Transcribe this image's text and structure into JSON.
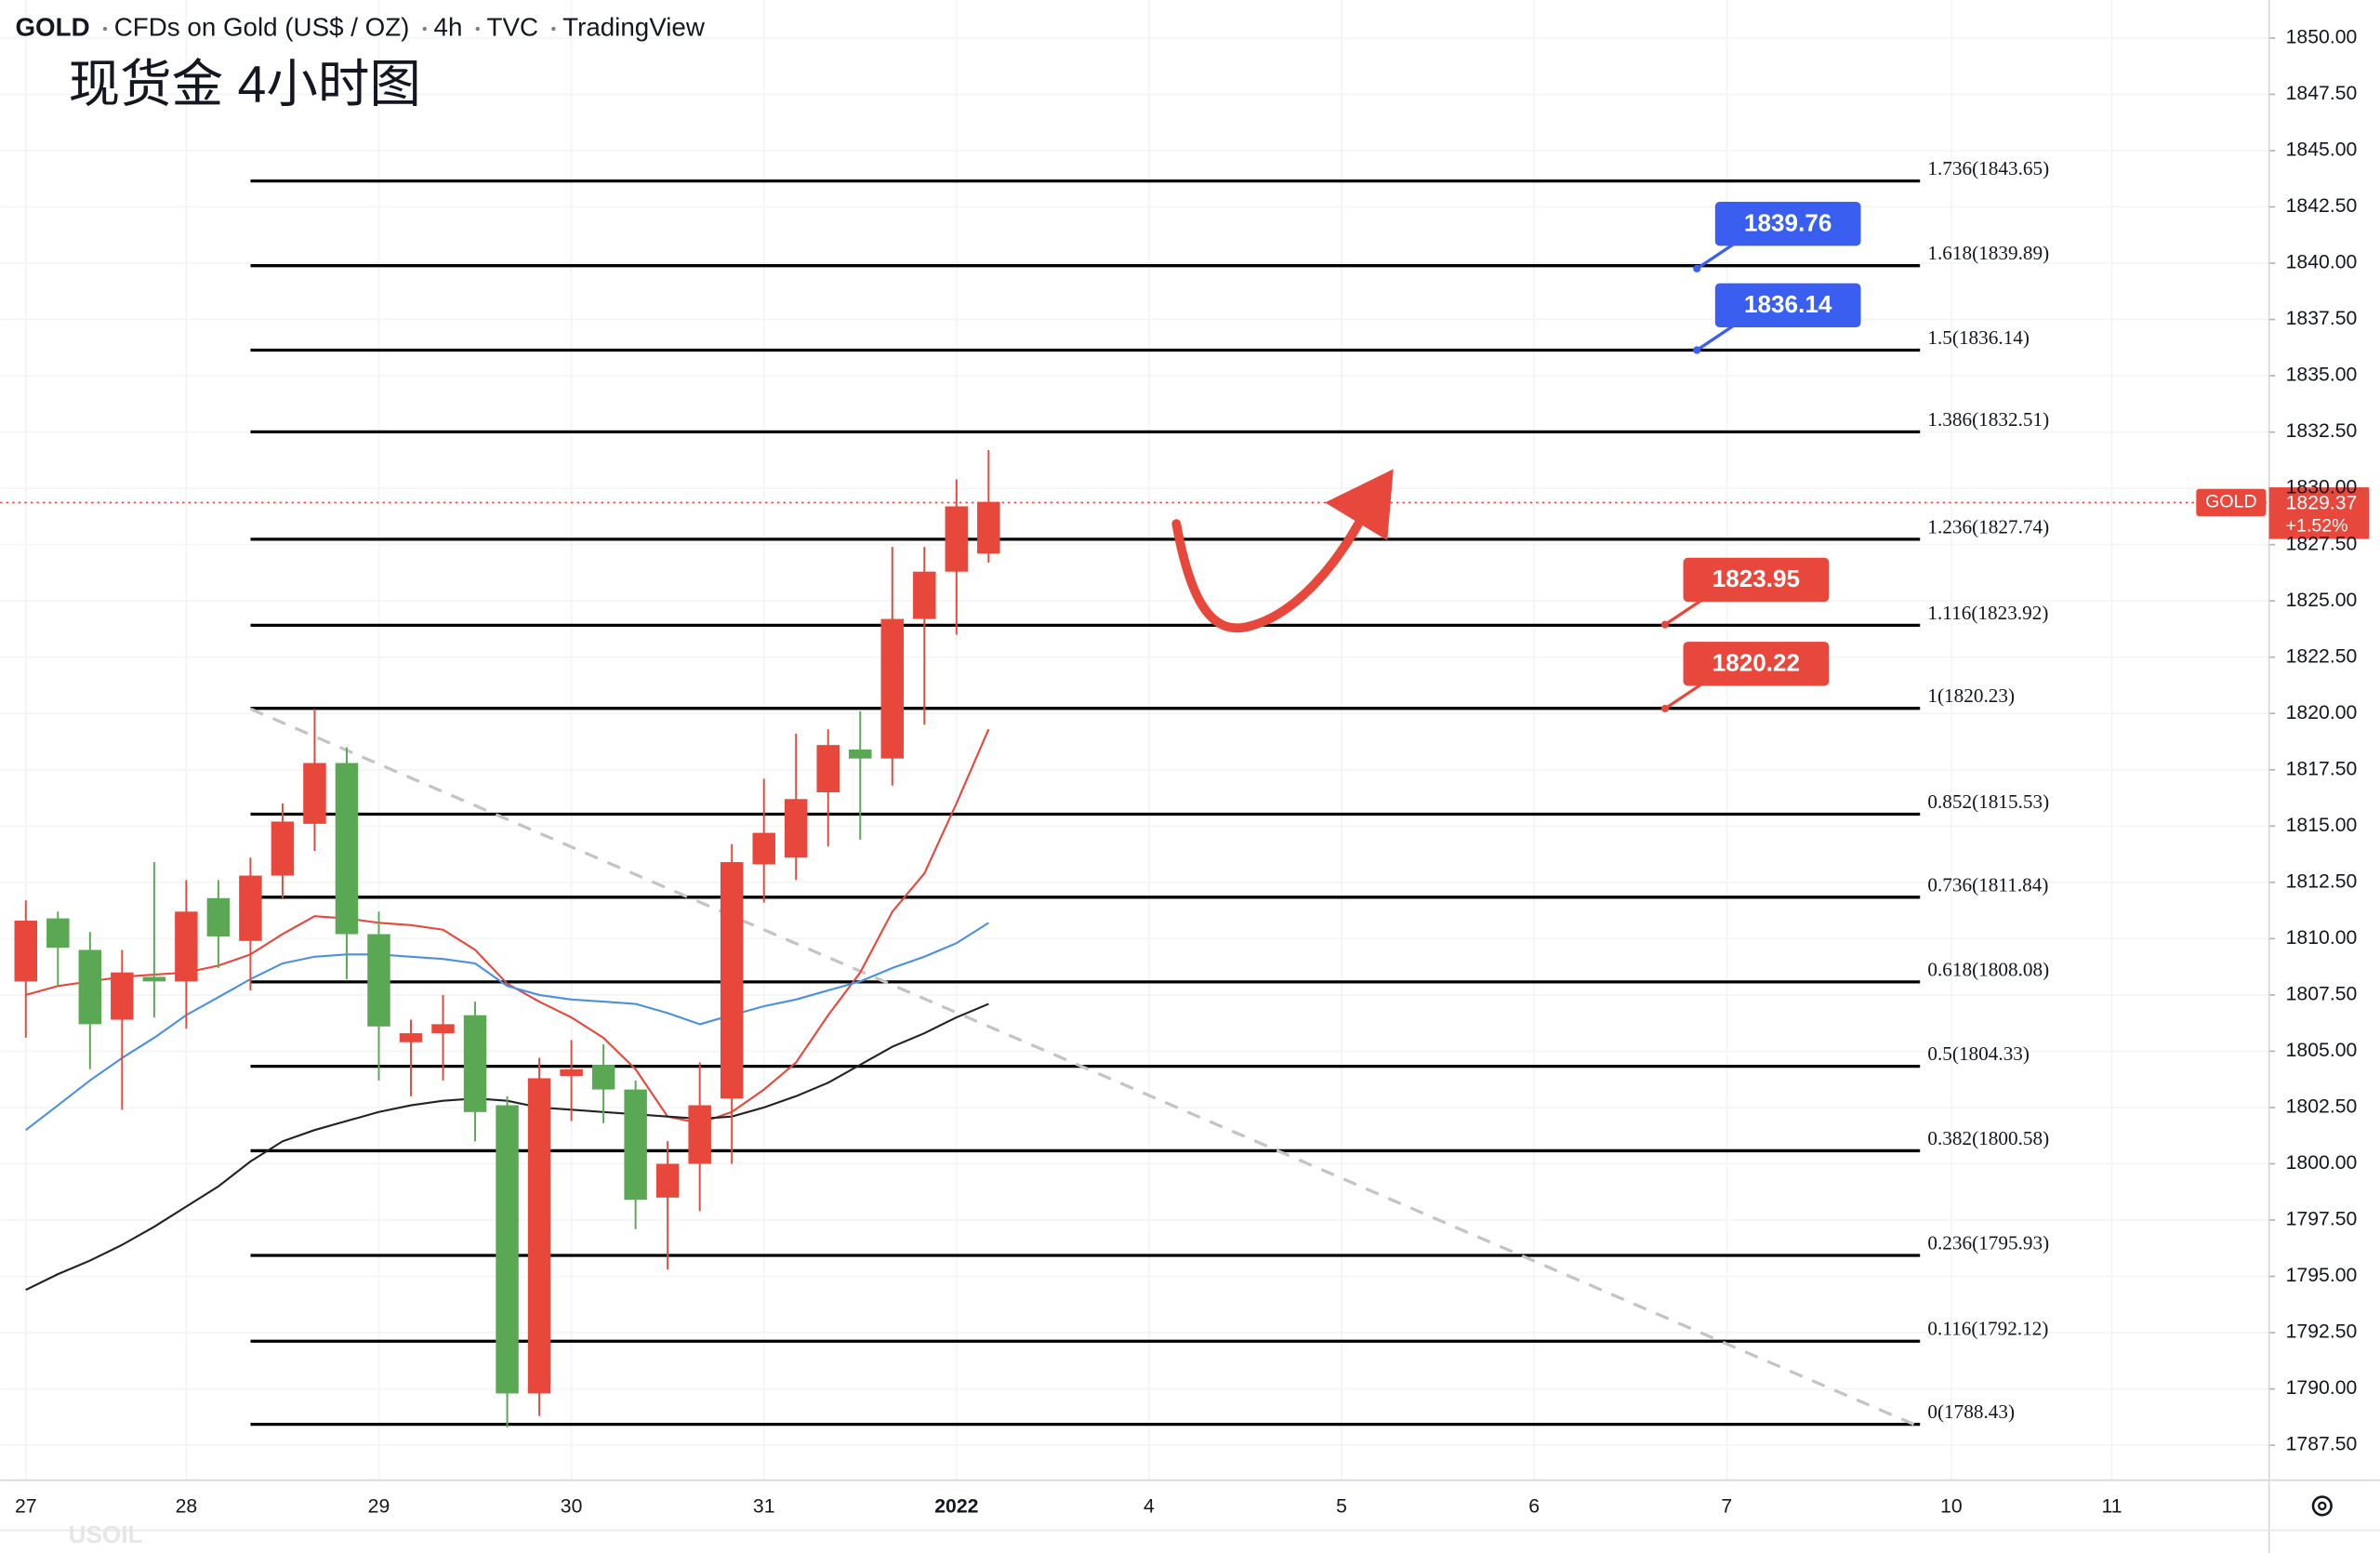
{
  "chart_data": {
    "type": "candlestick",
    "symbol": "GOLD",
    "title": "CFDs on Gold (US$ / OZ)",
    "interval": "4h",
    "exchange": "TVC",
    "source": "TradingView",
    "subtitle": "现货金 4小时图",
    "watermark": "USOIL",
    "x": [
      0,
      1,
      2,
      3,
      4,
      5,
      6,
      7,
      8,
      9,
      10,
      11,
      12,
      13,
      14,
      15,
      16,
      17,
      18,
      19,
      20,
      21,
      22,
      23,
      24,
      25,
      26,
      27,
      28,
      29,
      30
    ],
    "xlim": [
      -0.8,
      69.9
    ],
    "xticks": [
      {
        "value": 0,
        "label": "27"
      },
      {
        "value": 5,
        "label": "28"
      },
      {
        "value": 11,
        "label": "29"
      },
      {
        "value": 17,
        "label": "30"
      },
      {
        "value": 23,
        "label": "31"
      },
      {
        "value": 29,
        "label": "2022"
      },
      {
        "value": 35,
        "label": "4"
      },
      {
        "value": 41,
        "label": "5"
      },
      {
        "value": 47,
        "label": "6"
      },
      {
        "value": 53,
        "label": "7"
      },
      {
        "value": 60,
        "label": "10"
      },
      {
        "value": 65,
        "label": "11"
      }
    ],
    "ylim": [
      1785.95,
      1851.69
    ],
    "yticks": [
      {
        "value": 1787.5,
        "label": "1787.50"
      },
      {
        "value": 1790,
        "label": "1790.00"
      },
      {
        "value": 1792.5,
        "label": "1792.50"
      },
      {
        "value": 1795,
        "label": "1795.00"
      },
      {
        "value": 1797.5,
        "label": "1797.50"
      },
      {
        "value": 1800,
        "label": "1800.00"
      },
      {
        "value": 1802.5,
        "label": "1802.50"
      },
      {
        "value": 1805,
        "label": "1805.00"
      },
      {
        "value": 1807.5,
        "label": "1807.50"
      },
      {
        "value": 1810,
        "label": "1810.00"
      },
      {
        "value": 1812.5,
        "label": "1812.50"
      },
      {
        "value": 1815,
        "label": "1815.00"
      },
      {
        "value": 1817.5,
        "label": "1817.50"
      },
      {
        "value": 1820,
        "label": "1820.00"
      },
      {
        "value": 1822.5,
        "label": "1822.50"
      },
      {
        "value": 1825,
        "label": "1825.00"
      },
      {
        "value": 1827.5,
        "label": "1827.50"
      },
      {
        "value": 1830,
        "label": "1830.00"
      },
      {
        "value": 1832.5,
        "label": "1832.50"
      },
      {
        "value": 1835,
        "label": "1835.00"
      },
      {
        "value": 1837.5,
        "label": "1837.50"
      },
      {
        "value": 1840,
        "label": "1840.00"
      },
      {
        "value": 1842.5,
        "label": "1842.50"
      },
      {
        "value": 1845,
        "label": "1845.00"
      },
      {
        "value": 1847.5,
        "label": "1847.50"
      },
      {
        "value": 1850,
        "label": "1850.00"
      }
    ],
    "grid": true,
    "up_color": "#e8473b",
    "down_color": "#5aa853",
    "open": [
      1808.1,
      1810.9,
      1809.5,
      1806.4,
      1808.3,
      1808.1,
      1811.8,
      1809.9,
      1812.8,
      1815.1,
      1817.8,
      1810.2,
      1805.4,
      1805.8,
      1806.6,
      1802.6,
      1789.8,
      1803.9,
      1804.4,
      1803.3,
      1798.5,
      1800.0,
      1802.9,
      1813.3,
      1813.6,
      1816.5,
      1818.4,
      1818.0,
      1824.2,
      1826.3,
      1827.1
    ],
    "high": [
      1811.7,
      1811.2,
      1810.3,
      1809.5,
      1813.4,
      1812.6,
      1812.6,
      1813.6,
      1816.0,
      1820.2,
      1818.5,
      1811.2,
      1806.4,
      1807.5,
      1807.2,
      1803.0,
      1804.7,
      1805.5,
      1805.3,
      1803.7,
      1801.0,
      1804.5,
      1814.2,
      1817.1,
      1819.1,
      1819.3,
      1820.1,
      1827.4,
      1827.4,
      1830.4,
      1831.7
    ],
    "low": [
      1805.6,
      1807.9,
      1804.2,
      1802.4,
      1806.5,
      1806.0,
      1808.7,
      1807.7,
      1811.8,
      1813.9,
      1808.2,
      1803.7,
      1803.0,
      1803.7,
      1801.0,
      1788.3,
      1788.8,
      1801.9,
      1801.8,
      1797.1,
      1795.3,
      1797.9,
      1800.0,
      1811.6,
      1812.6,
      1814.1,
      1814.4,
      1816.8,
      1819.5,
      1823.5,
      1826.7
    ],
    "close": [
      1810.8,
      1809.6,
      1806.2,
      1808.5,
      1808.1,
      1811.2,
      1810.1,
      1812.8,
      1815.2,
      1817.8,
      1810.2,
      1806.1,
      1805.8,
      1806.2,
      1802.3,
      1789.8,
      1803.8,
      1804.2,
      1803.3,
      1798.4,
      1800.0,
      1802.6,
      1813.4,
      1814.7,
      1816.2,
      1818.6,
      1818.0,
      1824.2,
      1826.3,
      1829.2,
      1829.4
    ],
    "ma": [
      {
        "color": "#e8473b",
        "values": [
          1807.5,
          1807.9,
          1808.1,
          1808.3,
          1808.4,
          1808.5,
          1808.8,
          1809.3,
          1810.2,
          1811.0,
          1810.9,
          1810.7,
          1810.6,
          1810.4,
          1809.5,
          1808.0,
          1807.2,
          1806.5,
          1805.6,
          1804.2,
          1802.1,
          1801.8,
          1802.3,
          1803.3,
          1804.5,
          1806.6,
          1808.5,
          1811.2,
          1812.9,
          1816.0,
          1819.3
        ]
      },
      {
        "color": "#4a90e2",
        "values": [
          1801.5,
          1802.6,
          1803.7,
          1804.7,
          1805.6,
          1806.6,
          1807.4,
          1808.2,
          1808.9,
          1809.2,
          1809.3,
          1809.3,
          1809.2,
          1809.1,
          1808.9,
          1807.9,
          1807.5,
          1807.3,
          1807.2,
          1807.1,
          1806.7,
          1806.2,
          1806.6,
          1807.0,
          1807.3,
          1807.7,
          1808.1,
          1808.7,
          1809.2,
          1809.8,
          1810.7
        ]
      },
      {
        "color": "#222222",
        "values": [
          1794.4,
          1795.1,
          1795.7,
          1796.4,
          1797.2,
          1798.1,
          1799.0,
          1800.1,
          1801.0,
          1801.5,
          1801.9,
          1802.3,
          1802.6,
          1802.8,
          1802.9,
          1802.8,
          1802.5,
          1802.4,
          1802.3,
          1802.2,
          1802.1,
          1802.0,
          1802.1,
          1802.5,
          1803.0,
          1803.6,
          1804.4,
          1805.2,
          1805.8,
          1806.5,
          1807.1
        ]
      }
    ],
    "fib_levels": [
      {
        "label": "1.736(1843.65)",
        "value": 1843.65
      },
      {
        "label": "1.618(1839.89)",
        "value": 1839.89
      },
      {
        "label": "1.5(1836.14)",
        "value": 1836.14
      },
      {
        "label": "1.386(1832.51)",
        "value": 1832.51
      },
      {
        "label": "1.236(1827.74)",
        "value": 1827.74
      },
      {
        "label": "1.116(1823.92)",
        "value": 1823.92
      },
      {
        "label": "1(1820.23)",
        "value": 1820.23
      },
      {
        "label": "0.852(1815.53)",
        "value": 1815.53
      },
      {
        "label": "0.736(1811.84)",
        "value": 1811.84
      },
      {
        "label": "0.618(1808.08)",
        "value": 1808.08
      },
      {
        "label": "0.5(1804.33)",
        "value": 1804.33
      },
      {
        "label": "0.382(1800.58)",
        "value": 1800.58
      },
      {
        "label": "0.236(1795.93)",
        "value": 1795.93
      },
      {
        "label": "0.116(1792.12)",
        "value": 1792.12
      },
      {
        "label": "0(1788.43)",
        "value": 1788.43
      }
    ],
    "price_callouts": [
      {
        "value": 1839.76,
        "color": "#3a5ff0"
      },
      {
        "value": 1836.14,
        "color": "#3a5ff0"
      },
      {
        "value": 1823.95,
        "color": "#e8473b"
      },
      {
        "value": 1820.22,
        "color": "#e8473b"
      }
    ],
    "last_price": {
      "value": 1829.37,
      "change": "+1.52%",
      "color": "#e8473b"
    }
  }
}
